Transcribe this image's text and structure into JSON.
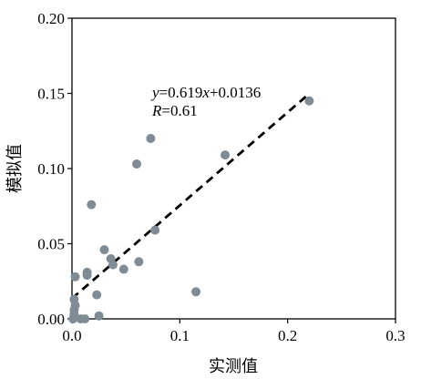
{
  "chart_data": {
    "type": "scatter",
    "title": "",
    "xlabel": "实测值",
    "ylabel": "模拟值",
    "xlim": [
      0,
      0.3
    ],
    "ylim": [
      0,
      0.2
    ],
    "x_ticks": [
      "0.0",
      "0.1",
      "0.2",
      "0.3"
    ],
    "y_ticks": [
      "0.00",
      "0.05",
      "0.10",
      "0.15",
      "0.20"
    ],
    "grid": false,
    "legend": "none",
    "point_color": "#7f8c95",
    "fit_line_color": "#000000",
    "points": [
      {
        "x": 0.001,
        "y": 0.0
      },
      {
        "x": 0.002,
        "y": 0.003
      },
      {
        "x": 0.002,
        "y": 0.006
      },
      {
        "x": 0.003,
        "y": 0.009
      },
      {
        "x": 0.002,
        "y": 0.013
      },
      {
        "x": 0.003,
        "y": 0.028
      },
      {
        "x": 0.008,
        "y": 0.0
      },
      {
        "x": 0.012,
        "y": 0.0
      },
      {
        "x": 0.014,
        "y": 0.029
      },
      {
        "x": 0.014,
        "y": 0.031
      },
      {
        "x": 0.018,
        "y": 0.076
      },
      {
        "x": 0.023,
        "y": 0.016
      },
      {
        "x": 0.025,
        "y": 0.002
      },
      {
        "x": 0.03,
        "y": 0.046
      },
      {
        "x": 0.036,
        "y": 0.04
      },
      {
        "x": 0.038,
        "y": 0.036
      },
      {
        "x": 0.048,
        "y": 0.033
      },
      {
        "x": 0.06,
        "y": 0.103
      },
      {
        "x": 0.062,
        "y": 0.038
      },
      {
        "x": 0.073,
        "y": 0.12
      },
      {
        "x": 0.077,
        "y": 0.059
      },
      {
        "x": 0.115,
        "y": 0.018
      },
      {
        "x": 0.142,
        "y": 0.109
      },
      {
        "x": 0.22,
        "y": 0.145
      }
    ],
    "fit_line": {
      "slope": 0.619,
      "intercept": 0.0136,
      "x_range": [
        0.0,
        0.22
      ]
    },
    "annotation": {
      "equation_var_y": "y",
      "equation_mid": "=0.619",
      "equation_var_x": "x",
      "equation_tail": "+0.0136",
      "r_var": "R",
      "r_value": "=0.61"
    }
  }
}
